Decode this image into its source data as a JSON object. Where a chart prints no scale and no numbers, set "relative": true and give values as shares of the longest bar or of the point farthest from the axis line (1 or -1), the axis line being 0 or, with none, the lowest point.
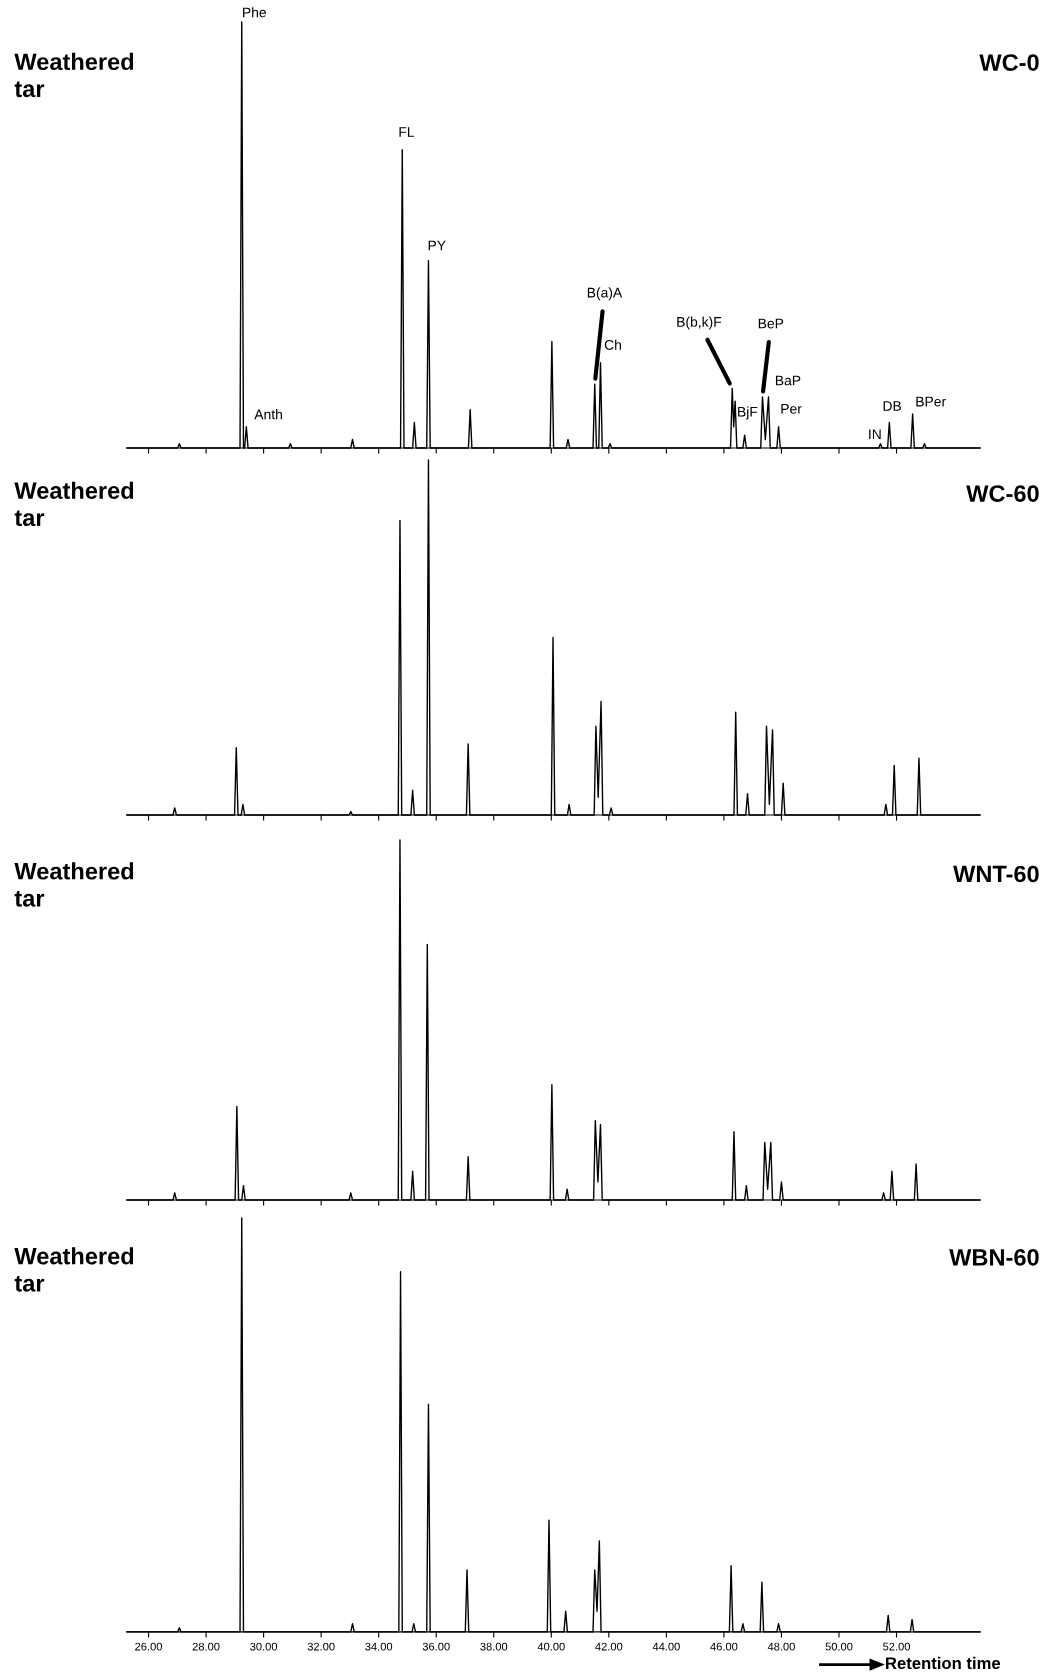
{
  "chart_data": [
    {
      "type": "line",
      "relative": true,
      "title": "WC-0",
      "tick_labels": false,
      "xlim": [
        25.25,
        54.9
      ],
      "xticks": [
        {
          "value": 26,
          "label": null
        },
        {
          "value": 28,
          "label": null
        },
        {
          "value": 30,
          "label": null
        },
        {
          "value": 32,
          "label": null
        },
        {
          "value": 34,
          "label": null
        },
        {
          "value": 36,
          "label": null
        },
        {
          "value": 38,
          "label": null
        },
        {
          "value": 40,
          "label": null
        },
        {
          "value": 42,
          "label": null
        },
        {
          "value": 44,
          "label": null
        },
        {
          "value": 46,
          "label": null
        },
        {
          "value": 48,
          "label": null
        },
        {
          "value": 50,
          "label": null
        },
        {
          "value": 52,
          "label": null
        }
      ],
      "series": [
        {
          "color": "#000000",
          "x": [
            25.25,
            27.01,
            27.07,
            27.13,
            29.18,
            29.24,
            29.3,
            29.34,
            29.4,
            29.46,
            30.87,
            30.93,
            30.99,
            33.03,
            33.09,
            33.15,
            34.76,
            34.82,
            34.88,
            35.18,
            35.24,
            35.3,
            35.67,
            35.73,
            35.79,
            37.12,
            37.18,
            37.24,
            39.96,
            40.02,
            40.08,
            40.52,
            40.58,
            40.64,
            41.45,
            41.51,
            41.57,
            41.65,
            41.71,
            41.77,
            41.98,
            42.04,
            42.1,
            46.23,
            46.29,
            46.34,
            46.39,
            46.45,
            46.66,
            46.72,
            46.78,
            47.28,
            47.34,
            47.44,
            47.55,
            47.61,
            47.84,
            47.9,
            47.96,
            51.38,
            51.44,
            51.5,
            51.69,
            51.75,
            51.81,
            52.5,
            52.56,
            52.62,
            52.91,
            52.97,
            53.03,
            54.9
          ],
          "values": [
            0,
            0,
            0.01,
            0,
            0,
            1.0,
            0,
            0,
            0.05,
            0,
            0,
            0.01,
            0,
            0,
            0.02,
            0,
            0,
            0.7,
            0,
            0,
            0.06,
            0,
            0,
            0.44,
            0,
            0,
            0.09,
            0,
            0,
            0.25,
            0,
            0,
            0.02,
            0,
            0,
            0.15,
            0,
            0,
            0.2,
            0,
            0,
            0.01,
            0,
            0,
            0.14,
            0.05,
            0.11,
            0,
            0,
            0.03,
            0,
            0,
            0.12,
            0.02,
            0.12,
            0,
            0,
            0.05,
            0,
            0,
            0.01,
            0,
            0,
            0.06,
            0,
            0,
            0.08,
            0,
            0,
            0.01,
            0,
            0
          ]
        }
      ],
      "annotations": [
        "Weathered\ntar",
        {
          "text": "Phe",
          "x": 29.24,
          "y": 1.0
        },
        {
          "text": "Anth",
          "x": 29.4,
          "y": 0.05
        },
        {
          "text": "FL",
          "x": 34.82,
          "y": 0.7
        },
        {
          "text": "PY",
          "x": 35.73,
          "y": 0.44
        },
        {
          "text": "B(a)A",
          "x": 41.51,
          "y": 0.15
        },
        {
          "text": "Ch",
          "x": 41.71,
          "y": 0.2
        },
        {
          "text": "B(b,k)F",
          "x": 46.29,
          "y": 0.14
        },
        {
          "text": "BjF",
          "x": 46.72,
          "y": 0.03
        },
        {
          "text": "BeP",
          "x": 47.34,
          "y": 0.12
        },
        {
          "text": "BaP",
          "x": 47.55,
          "y": 0.12
        },
        {
          "text": "Per",
          "x": 47.9,
          "y": 0.05
        },
        {
          "text": "IN",
          "x": 51.44,
          "y": 0.01
        },
        {
          "text": "DB",
          "x": 51.75,
          "y": 0.06
        },
        {
          "text": "BPer",
          "x": 52.56,
          "y": 0.08
        }
      ]
    },
    {
      "type": "line",
      "relative": true,
      "title": "WC-60",
      "tick_labels": false,
      "xlim": [
        25.25,
        54.9
      ],
      "xticks": [
        {
          "value": 26,
          "label": null
        },
        {
          "value": 28,
          "label": null
        },
        {
          "value": 30,
          "label": null
        },
        {
          "value": 32,
          "label": null
        },
        {
          "value": 34,
          "label": null
        },
        {
          "value": 36,
          "label": null
        },
        {
          "value": 38,
          "label": null
        },
        {
          "value": 40,
          "label": null
        },
        {
          "value": 42,
          "label": null
        },
        {
          "value": 44,
          "label": null
        },
        {
          "value": 46,
          "label": null
        },
        {
          "value": 48,
          "label": null
        },
        {
          "value": 50,
          "label": null
        },
        {
          "value": 52,
          "label": null
        }
      ],
      "series": [
        {
          "color": "#000000",
          "x": [
            25.25,
            26.85,
            26.91,
            26.97,
            28.99,
            29.05,
            29.11,
            29.22,
            29.28,
            29.34,
            32.97,
            33.03,
            33.09,
            34.68,
            34.74,
            34.8,
            35.12,
            35.18,
            35.24,
            35.67,
            35.73,
            35.79,
            37.05,
            37.11,
            37.17,
            40.0,
            40.06,
            40.12,
            40.56,
            40.62,
            40.68,
            41.49,
            41.55,
            41.63,
            41.73,
            41.79,
            42.02,
            42.08,
            42.14,
            46.35,
            46.41,
            46.47,
            46.76,
            46.82,
            46.88,
            47.42,
            47.48,
            47.58,
            47.69,
            47.75,
            48.0,
            48.06,
            48.12,
            51.57,
            51.63,
            51.69,
            51.86,
            51.92,
            51.98,
            52.72,
            52.78,
            52.84,
            54.9
          ],
          "values": [
            0,
            0,
            0.02,
            0,
            0,
            0.19,
            0,
            0,
            0.03,
            0,
            0,
            0.01,
            0,
            0,
            0.83,
            0,
            0,
            0.07,
            0,
            0,
            1.0,
            0,
            0,
            0.2,
            0,
            0,
            0.5,
            0,
            0,
            0.03,
            0,
            0,
            0.25,
            0.05,
            0.32,
            0,
            0,
            0.02,
            0,
            0,
            0.29,
            0,
            0,
            0.06,
            0,
            0,
            0.25,
            0.03,
            0.24,
            0,
            0,
            0.09,
            0,
            0,
            0.03,
            0,
            0,
            0.14,
            0,
            0,
            0.16,
            0,
            0
          ]
        }
      ],
      "annotations": [
        "Weathered\ntar"
      ]
    },
    {
      "type": "line",
      "relative": true,
      "title": "WNT-60",
      "tick_labels": false,
      "xlim": [
        25.25,
        54.9
      ],
      "xticks": [
        {
          "value": 26,
          "label": null
        },
        {
          "value": 28,
          "label": null
        },
        {
          "value": 30,
          "label": null
        },
        {
          "value": 32,
          "label": null
        },
        {
          "value": 34,
          "label": null
        },
        {
          "value": 36,
          "label": null
        },
        {
          "value": 38,
          "label": null
        },
        {
          "value": 40,
          "label": null
        },
        {
          "value": 42,
          "label": null
        },
        {
          "value": 44,
          "label": null
        },
        {
          "value": 46,
          "label": null
        },
        {
          "value": 48,
          "label": null
        },
        {
          "value": 50,
          "label": null
        },
        {
          "value": 52,
          "label": null
        }
      ],
      "series": [
        {
          "color": "#000000",
          "x": [
            25.25,
            26.85,
            26.91,
            26.97,
            29.01,
            29.07,
            29.13,
            29.24,
            29.3,
            29.36,
            32.97,
            33.03,
            33.09,
            34.68,
            34.74,
            34.8,
            35.12,
            35.18,
            35.24,
            35.63,
            35.69,
            35.75,
            37.05,
            37.11,
            37.17,
            39.96,
            40.02,
            40.08,
            40.49,
            40.55,
            40.61,
            41.47,
            41.53,
            41.62,
            41.71,
            41.77,
            46.29,
            46.35,
            46.41,
            46.72,
            46.78,
            46.84,
            47.36,
            47.42,
            47.52,
            47.63,
            47.69,
            47.94,
            48.0,
            48.06,
            51.49,
            51.55,
            51.61,
            51.78,
            51.84,
            51.9,
            52.62,
            52.68,
            52.74,
            54.9
          ],
          "values": [
            0,
            0,
            0.02,
            0,
            0,
            0.26,
            0,
            0,
            0.04,
            0,
            0,
            0.02,
            0,
            0,
            1.0,
            0,
            0,
            0.08,
            0,
            0,
            0.71,
            0,
            0,
            0.12,
            0,
            0,
            0.32,
            0,
            0,
            0.03,
            0,
            0,
            0.22,
            0.05,
            0.21,
            0,
            0,
            0.19,
            0,
            0,
            0.04,
            0,
            0,
            0.16,
            0.03,
            0.16,
            0,
            0,
            0.05,
            0,
            0,
            0.02,
            0,
            0,
            0.08,
            0,
            0,
            0.1,
            0,
            0
          ]
        }
      ],
      "annotations": [
        "Weathered\ntar"
      ]
    },
    {
      "type": "line",
      "relative": true,
      "title": "WBN-60",
      "tick_labels": "x",
      "xlabel": "Retention time",
      "xlim": [
        25.25,
        54.9
      ],
      "xticks": [
        {
          "value": 26,
          "label": "26.00"
        },
        {
          "value": 28,
          "label": "28.00"
        },
        {
          "value": 30,
          "label": "30.00"
        },
        {
          "value": 32,
          "label": "32.00"
        },
        {
          "value": 34,
          "label": "34.00"
        },
        {
          "value": 36,
          "label": "36.00"
        },
        {
          "value": 38,
          "label": "38.00"
        },
        {
          "value": 40,
          "label": "40.00"
        },
        {
          "value": 42,
          "label": "42.00"
        },
        {
          "value": 44,
          "label": "44.00"
        },
        {
          "value": 46,
          "label": "46.00"
        },
        {
          "value": 48,
          "label": "48.00"
        },
        {
          "value": 50,
          "label": "50.00"
        },
        {
          "value": 52,
          "label": "52.00"
        }
      ],
      "series": [
        {
          "color": "#000000",
          "x": [
            25.25,
            27.01,
            27.07,
            27.13,
            29.18,
            29.24,
            29.3,
            33.03,
            33.09,
            33.15,
            34.7,
            34.76,
            34.82,
            35.16,
            35.22,
            35.28,
            35.67,
            35.73,
            35.79,
            37.01,
            37.07,
            37.13,
            39.86,
            39.92,
            39.98,
            40.44,
            40.5,
            40.56,
            41.45,
            41.51,
            41.59,
            41.67,
            41.73,
            46.19,
            46.25,
            46.31,
            46.6,
            46.66,
            46.72,
            47.26,
            47.32,
            47.38,
            47.84,
            47.9,
            47.96,
            51.65,
            51.71,
            51.77,
            52.48,
            52.54,
            52.6,
            54.9
          ],
          "values": [
            0,
            0,
            0.01,
            0,
            0,
            1.0,
            0,
            0,
            0.02,
            0,
            0,
            0.87,
            0,
            0,
            0.02,
            0,
            0,
            0.55,
            0,
            0,
            0.15,
            0,
            0,
            0.27,
            0,
            0,
            0.05,
            0,
            0,
            0.15,
            0.05,
            0.22,
            0,
            0,
            0.16,
            0,
            0,
            0.02,
            0,
            0,
            0.12,
            0,
            0,
            0.02,
            0,
            0,
            0.04,
            0,
            0,
            0.03,
            0,
            0
          ]
        }
      ],
      "annotations": [
        "Weathered\ntar"
      ]
    }
  ]
}
